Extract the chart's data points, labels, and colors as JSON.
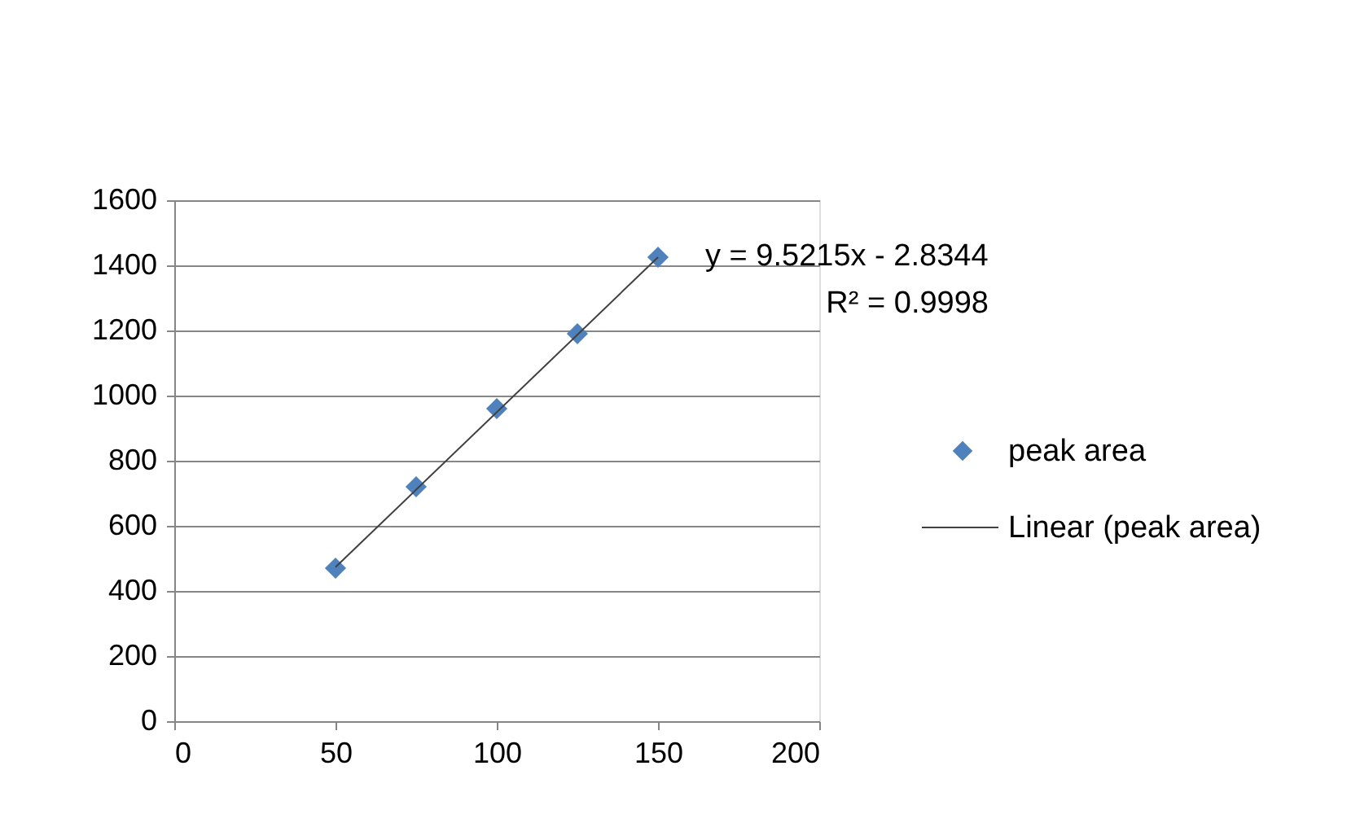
{
  "chart_data": {
    "type": "scatter",
    "x": [
      50,
      75,
      100,
      125,
      150
    ],
    "series": [
      {
        "name": "peak area",
        "color": "#4f81bd",
        "marker": "diamond",
        "values": [
          470,
          720,
          960,
          1190,
          1425
        ]
      },
      {
        "name": "Linear (peak area)",
        "type": "line",
        "color": "#404040",
        "line_style": "solid",
        "x": [
          50,
          150
        ],
        "values": [
          473,
          1425
        ]
      }
    ],
    "xlim": [
      0,
      200
    ],
    "xticks": [
      0,
      50,
      100,
      150,
      200
    ],
    "ylim": [
      0,
      1600
    ],
    "yticks": [
      0,
      200,
      400,
      600,
      800,
      1000,
      1200,
      1400,
      1600
    ],
    "grid": "y",
    "legend": "right",
    "annotations": [
      "y = 9.5215x - 2.8344",
      "R² = 0.9998"
    ]
  }
}
